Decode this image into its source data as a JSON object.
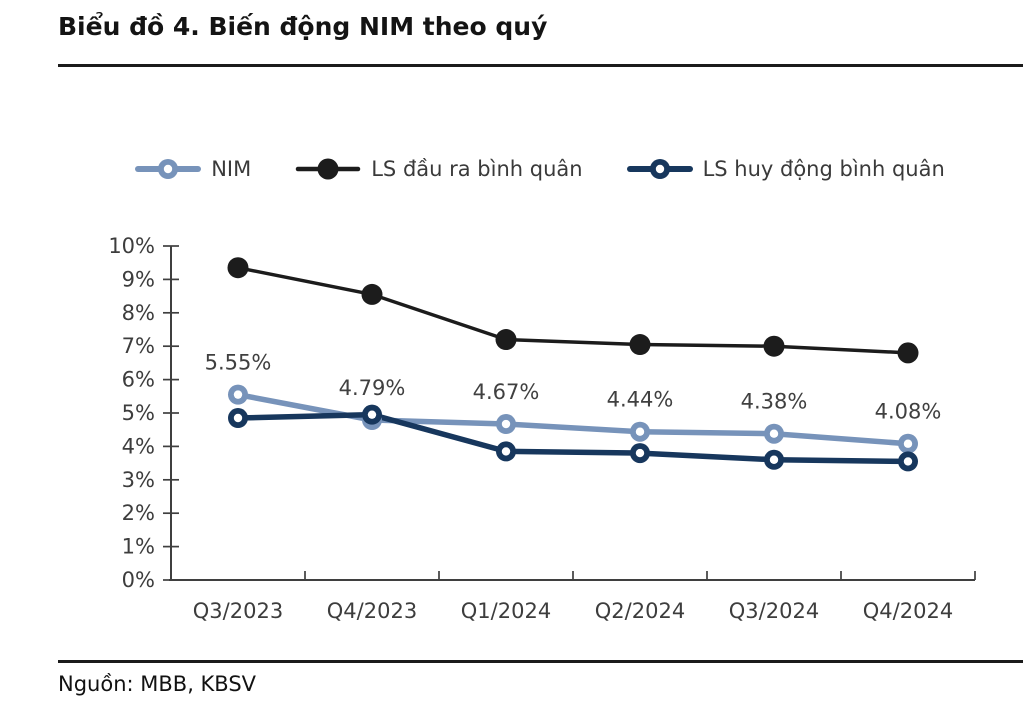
{
  "header": {
    "title": "Biểu đồ 4. Biến động NIM theo quý"
  },
  "footer": {
    "source": "Nguồn: MBB, KBSV"
  },
  "chart_data": {
    "type": "line",
    "title": "Biểu đồ 4. Biến động NIM theo quý",
    "categories": [
      "Q3/2023",
      "Q4/2023",
      "Q1/2024",
      "Q2/2024",
      "Q3/2024",
      "Q4/2024"
    ],
    "series": [
      {
        "name": "NIM",
        "color": "#7793BA",
        "marker": "ring",
        "values": [
          5.55,
          4.79,
          4.67,
          4.44,
          4.38,
          4.08
        ],
        "labels": [
          "5.55%",
          "4.79%",
          "4.67%",
          "4.44%",
          "4.38%",
          "4.08%"
        ]
      },
      {
        "name": "LS đầu ra bình quân",
        "color": "#1c1c1c",
        "marker": "dot",
        "values": [
          9.35,
          8.55,
          7.2,
          7.05,
          7.0,
          6.8
        ]
      },
      {
        "name": "LS huy động bình quân",
        "color": "#17375d",
        "marker": "ring",
        "values": [
          4.85,
          4.95,
          3.85,
          3.8,
          3.6,
          3.55
        ]
      }
    ],
    "ylim": [
      0,
      10
    ],
    "yticks": [
      "0%",
      "1%",
      "2%",
      "3%",
      "4%",
      "5%",
      "6%",
      "7%",
      "8%",
      "9%",
      "10%"
    ],
    "axis_color": "#3f3f3f",
    "tick_label_color": "#3d3d3d",
    "data_label_color": "#404040",
    "grid": false,
    "legend_position": "top"
  }
}
